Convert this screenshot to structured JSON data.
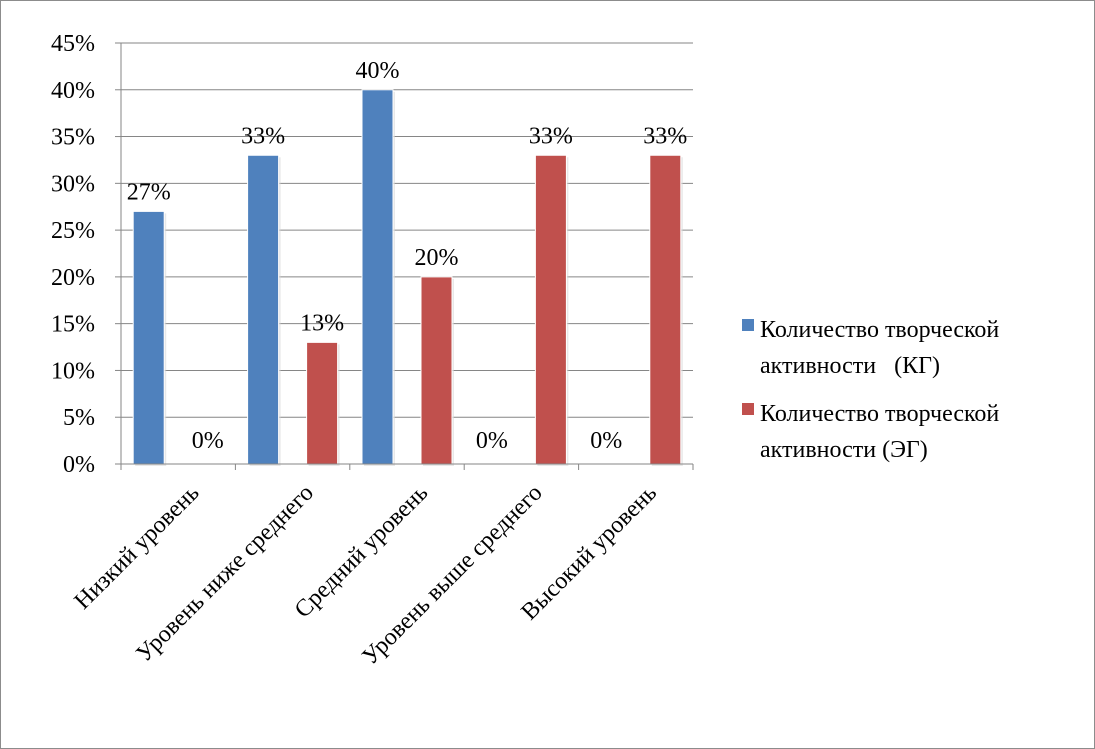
{
  "chart_data": {
    "type": "bar",
    "title": "",
    "xlabel": "",
    "ylabel": "",
    "categories": [
      "Низкий уровень",
      "Уровень ниже среднего",
      "Средний уровень",
      "Уровень выше среднего",
      "Высокий уровень"
    ],
    "series": [
      {
        "name": "Количество творческой активности   (КГ)",
        "legend_lines": [
          "Количество творческой",
          "активности   (КГ)"
        ],
        "color": "#4f81bd",
        "values": [
          27,
          33,
          40,
          0,
          0
        ],
        "labels": [
          "27%",
          "33%",
          "40%",
          "0%",
          "0%"
        ]
      },
      {
        "name": "Количество творческой активности (ЭГ)",
        "legend_lines": [
          "Количество творческой",
          "активности (ЭГ)"
        ],
        "color": "#c0504d",
        "values": [
          0,
          13,
          20,
          33,
          33
        ],
        "labels": [
          "0%",
          "13%",
          "20%",
          "33%",
          "33%"
        ]
      }
    ],
    "ylim": [
      0,
      45
    ],
    "yticks": [
      "0%",
      "5%",
      "10%",
      "15%",
      "20%",
      "25%",
      "30%",
      "35%",
      "40%",
      "45%"
    ],
    "grid": true,
    "legend_position": "right"
  }
}
